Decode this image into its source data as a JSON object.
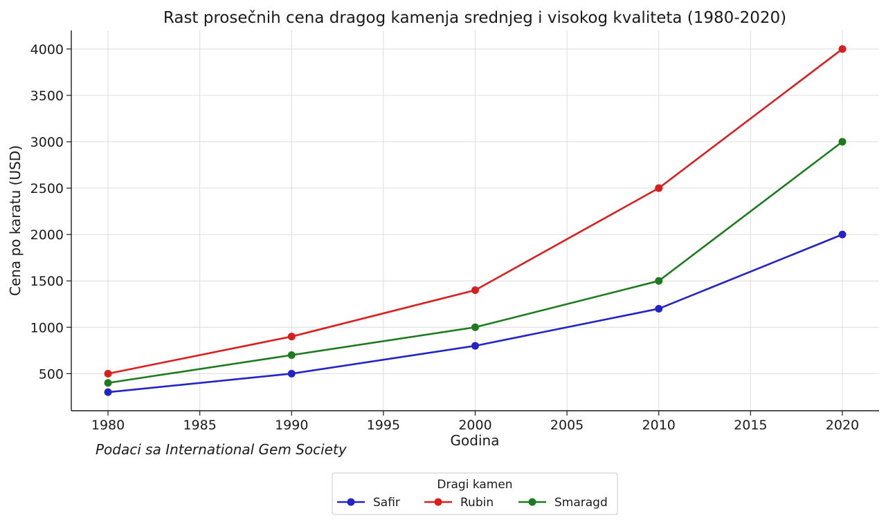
{
  "chart_data": {
    "type": "line",
    "title": "Rast prosečnih cena dragog kamenja srednjeg i visokog kvaliteta (1980-2020)",
    "xlabel": "Godina",
    "ylabel": "Cena po karatu (USD)",
    "x": [
      1980,
      1990,
      2000,
      2010,
      2020
    ],
    "xlim": [
      1978,
      2022
    ],
    "ylim": [
      100,
      4200
    ],
    "xticks": [
      1980,
      1985,
      1990,
      1995,
      2000,
      2005,
      2010,
      2015,
      2020
    ],
    "yticks": [
      500,
      1000,
      1500,
      2000,
      2500,
      3000,
      3500,
      4000
    ],
    "grid": true,
    "series": [
      {
        "name": "Safir",
        "color": "#2323c8",
        "values": [
          300,
          500,
          800,
          1200,
          2000
        ]
      },
      {
        "name": "Rubin",
        "color": "#d91e1e",
        "values": [
          500,
          900,
          1400,
          2500,
          4000
        ]
      },
      {
        "name": "Smaragd",
        "color": "#1e7a1e",
        "values": [
          400,
          700,
          1000,
          1500,
          3000
        ]
      }
    ],
    "legend": {
      "title": "Dragi kamen",
      "placement": "bottom-center"
    },
    "annotation": "Podaci sa International Gem Society"
  }
}
